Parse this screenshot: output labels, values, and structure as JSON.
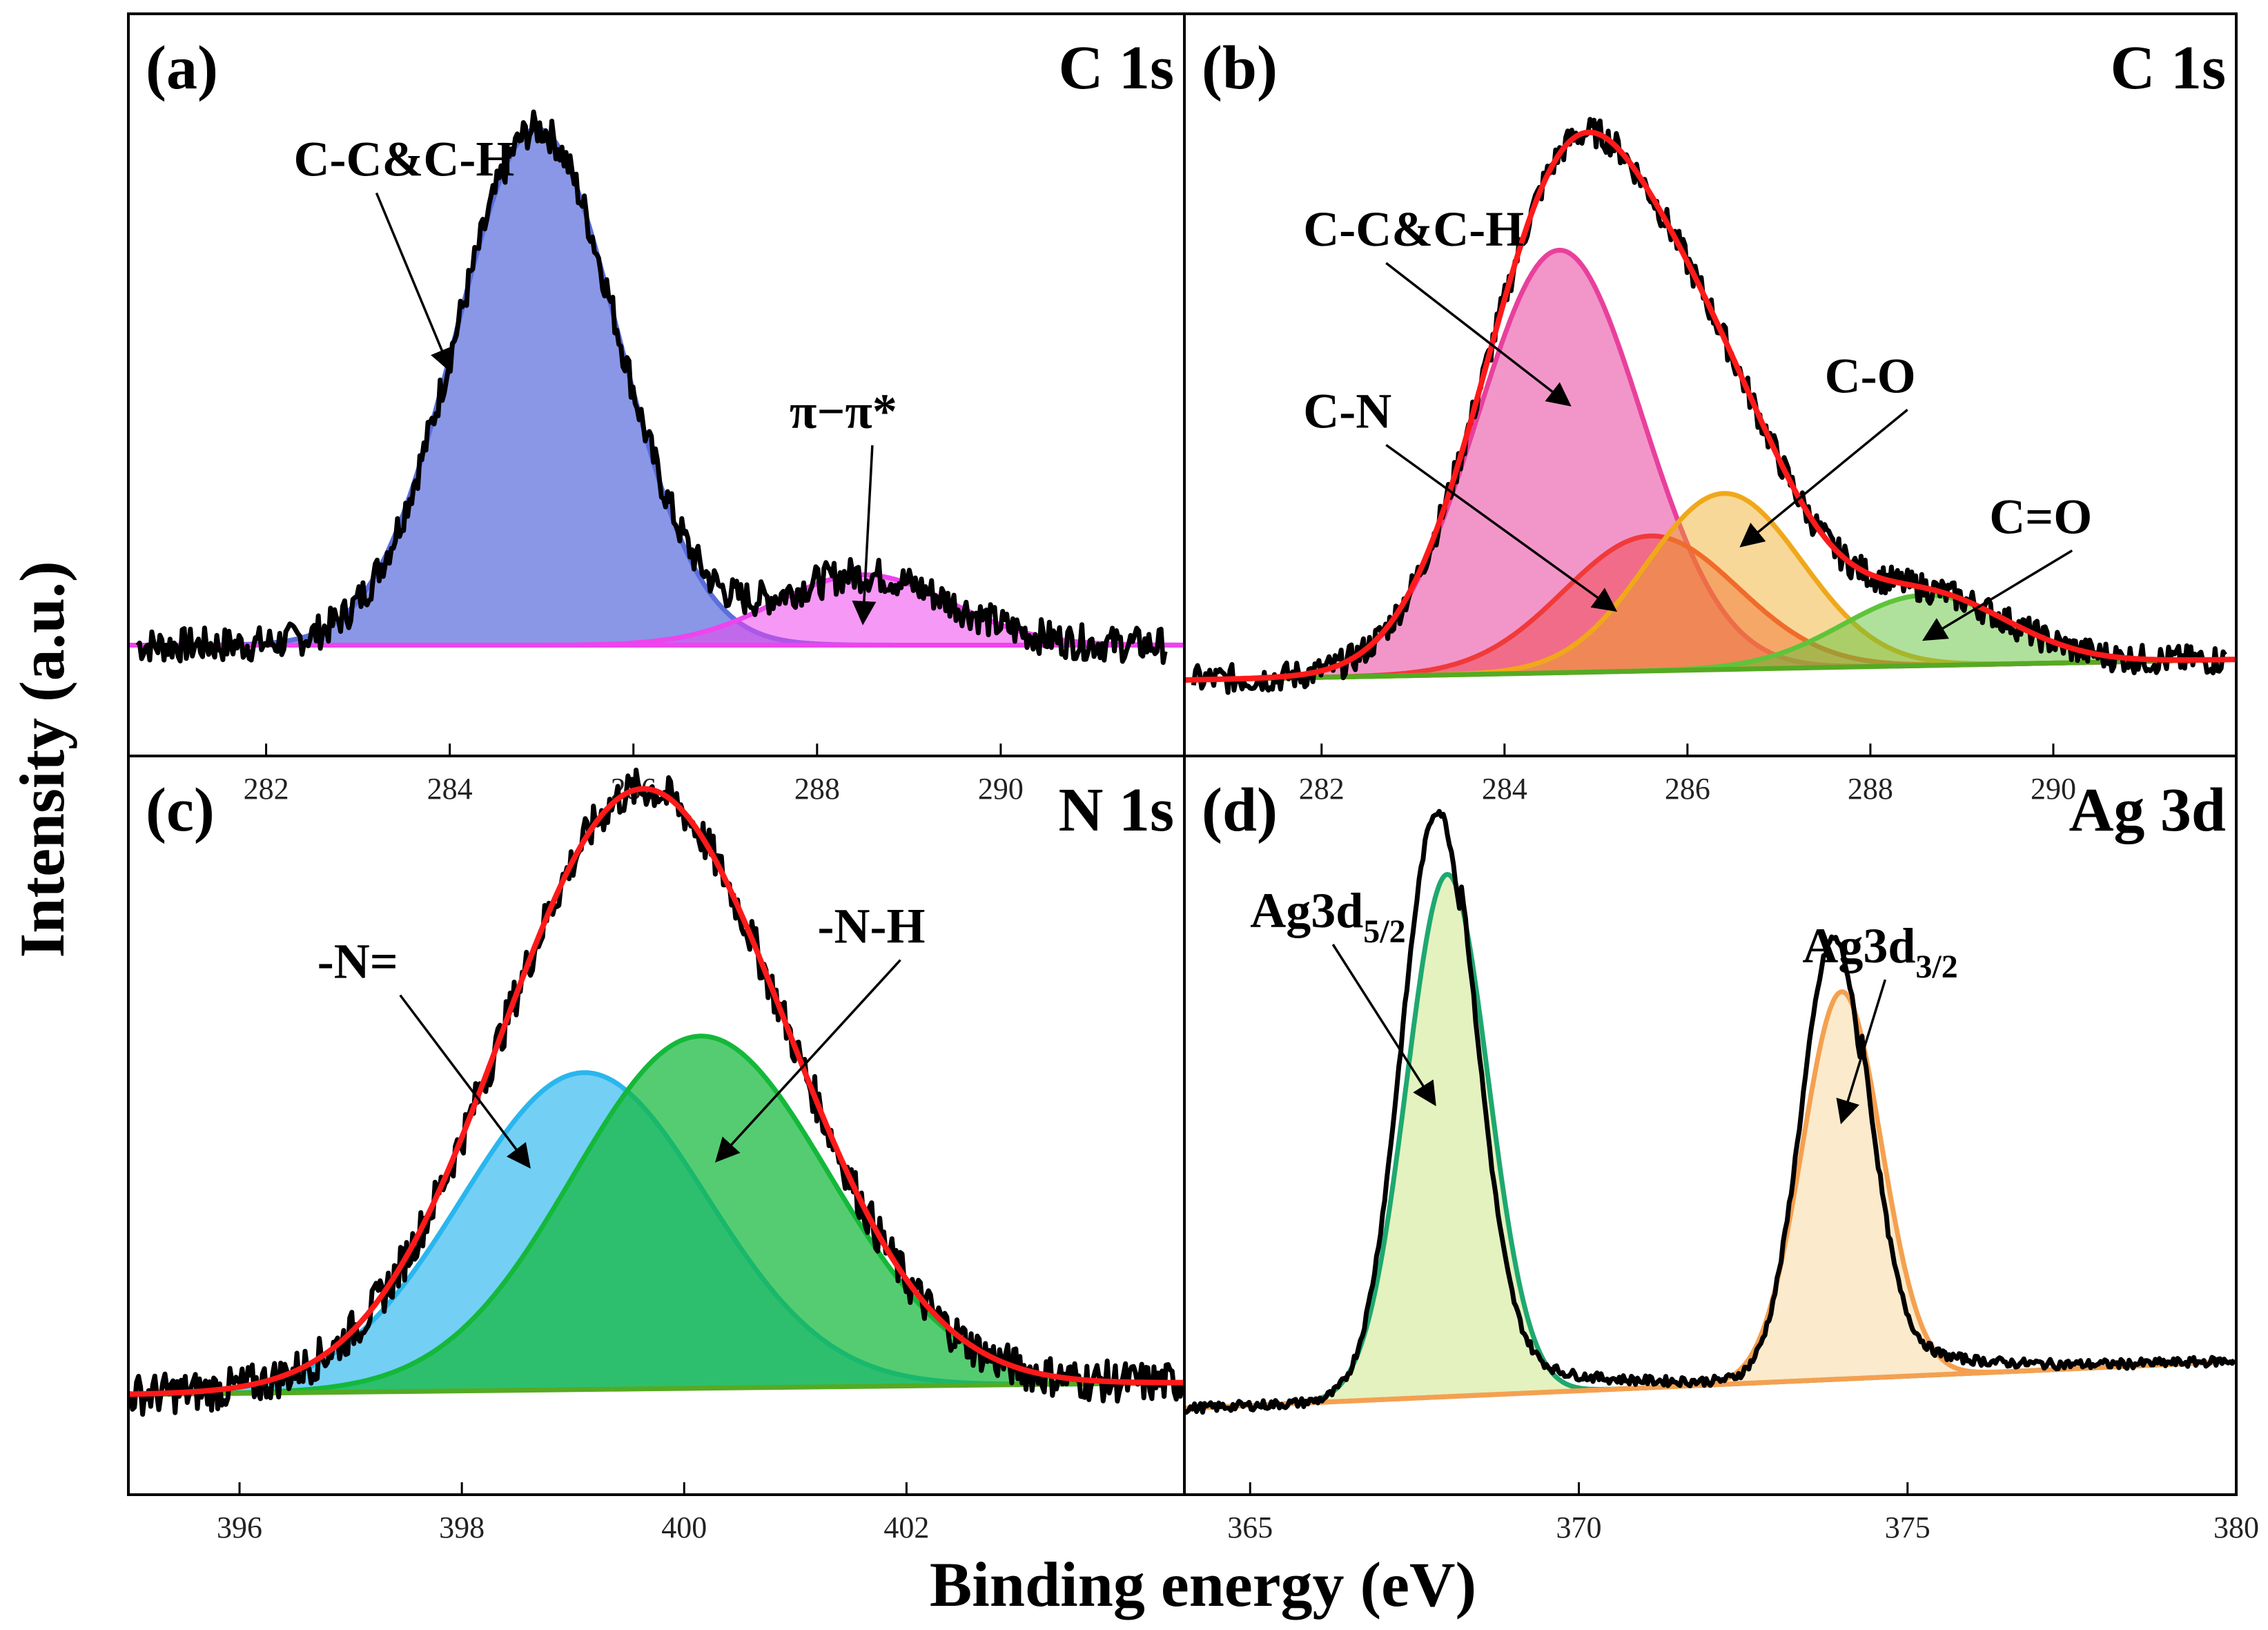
{
  "figure": {
    "xlabel": "Binding energy (eV)",
    "ylabel": "Intensity (a.u.)"
  },
  "chart_data": [
    {
      "type": "line",
      "panel": "(a)",
      "title": "C 1s",
      "xlim": [
        280.5,
        292
      ],
      "xticks": [
        282,
        284,
        286,
        288,
        290
      ],
      "background": {
        "name": "background",
        "color": "#ee44ee",
        "baseline": 0.03
      },
      "raw_data": {
        "start": 280.6,
        "end": 291.8,
        "noise": 0.03
      },
      "envelope": null,
      "components": [
        {
          "name": "C-C&C-H",
          "center": 284.95,
          "height": 0.88,
          "sigma": 0.88,
          "color": "#5b6fdc",
          "fill_opacity": 0.72
        },
        {
          "name": "π−π*",
          "center": 288.5,
          "height": 0.12,
          "sigma": 0.95,
          "color": "#ee44ee",
          "fill_opacity": 0.55
        }
      ],
      "annotations": [
        {
          "text": "C-C&C-H",
          "label_x": 282.3,
          "label_y": 0.83,
          "tip_x": 284.0,
          "tip_y": 0.5
        },
        {
          "text": "π−π*",
          "label_x": 287.7,
          "label_y": 0.4,
          "tip_x": 288.5,
          "tip_y": 0.07
        }
      ]
    },
    {
      "type": "line",
      "panel": "(b)",
      "title": "C 1s",
      "xlim": [
        280.5,
        292
      ],
      "xticks": [
        282,
        284,
        286,
        288,
        290
      ],
      "background": {
        "name": "background",
        "color": "#55aa22",
        "start": 0.0,
        "end": 0.035
      },
      "raw_data": {
        "start": 280.6,
        "end": 291.9,
        "noise": 0.025
      },
      "envelope": {
        "name": "envelope",
        "color": "#ff1a1a"
      },
      "components": [
        {
          "name": "C-C&C-H",
          "center": 284.6,
          "height": 0.72,
          "sigma": 0.9,
          "color": "#e8409c",
          "fill_opacity": 0.55
        },
        {
          "name": "C-N",
          "center": 285.6,
          "height": 0.23,
          "sigma": 0.95,
          "color": "#f03a3a",
          "fill_opacity": 0.45
        },
        {
          "name": "C-O",
          "center": 286.4,
          "height": 0.3,
          "sigma": 0.85,
          "color": "#f0a81a",
          "fill_opacity": 0.45
        },
        {
          "name": "C=O",
          "center": 288.6,
          "height": 0.12,
          "sigma": 0.9,
          "color": "#5fc43a",
          "fill_opacity": 0.5
        }
      ],
      "annotations": [
        {
          "text": "C-C&C-H",
          "label_x": 281.8,
          "label_y": 0.74,
          "tip_x": 284.7,
          "tip_y": 0.47
        },
        {
          "text": "C-N",
          "label_x": 281.8,
          "label_y": 0.43,
          "tip_x": 285.2,
          "tip_y": 0.12
        },
        {
          "text": "C-O",
          "label_x": 287.5,
          "label_y": 0.49,
          "tip_x": 286.6,
          "tip_y": 0.23
        },
        {
          "text": "C=O",
          "label_x": 289.3,
          "label_y": 0.25,
          "tip_x": 288.6,
          "tip_y": 0.07
        }
      ]
    },
    {
      "type": "line",
      "panel": "(c)",
      "title": "N 1s",
      "xlim": [
        395,
        404.5
      ],
      "xticks": [
        396,
        398,
        400,
        402
      ],
      "background": {
        "name": "background",
        "color": "#55aa22",
        "start": 0.0,
        "end": 0.02
      },
      "raw_data": {
        "start": 395.0,
        "end": 404.5,
        "noise": 0.035
      },
      "envelope": {
        "name": "envelope",
        "color": "#ff1a1a"
      },
      "components": [
        {
          "name": "-N=",
          "center": 399.1,
          "height": 0.54,
          "sigma": 1.1,
          "color": "#29b6ee",
          "fill_opacity": 0.65
        },
        {
          "name": "-N-H",
          "center": 400.15,
          "height": 0.6,
          "sigma": 1.15,
          "color": "#14b83a",
          "fill_opacity": 0.72
        }
      ],
      "annotations": [
        {
          "text": "-N=",
          "label_x": 396.7,
          "label_y": 0.71,
          "tip_x": 398.6,
          "tip_y": 0.39
        },
        {
          "text": "-N-H",
          "label_x": 401.2,
          "label_y": 0.77,
          "tip_x": 400.3,
          "tip_y": 0.4
        }
      ]
    },
    {
      "type": "line",
      "panel": "(d)",
      "title": "Ag 3d",
      "xlim": [
        364,
        380
      ],
      "xticks": [
        365,
        370,
        375,
        380
      ],
      "background": {
        "name": "background",
        "color": "#f5a050",
        "start": 0.0,
        "end": 0.08
      },
      "raw_data": {
        "start": 364.0,
        "end": 380.0,
        "noise": 0.008
      },
      "envelope": null,
      "components": [
        {
          "name": "Ag3d5/2",
          "center": 368.0,
          "height": 0.89,
          "sigma": 0.62,
          "color": "#1ea870",
          "fill_opacity": 0.55,
          "fill": "#cde88a"
        },
        {
          "name": "Ag3d3/2",
          "center": 374.0,
          "height": 0.66,
          "sigma": 0.6,
          "color": "#f5a050",
          "fill_opacity": 0.55,
          "fill": "#f8d9a0"
        }
      ],
      "raw_peaks": [
        {
          "center": 367.85,
          "height": 1.0,
          "sigma": 0.55
        },
        {
          "center": 373.88,
          "height": 0.75,
          "sigma": 0.5
        }
      ],
      "annotations": [
        {
          "text": "Ag3d",
          "sub": "5/2",
          "label_x": 365.0,
          "label_y": 0.82,
          "tip_x": 367.8,
          "tip_y": 0.52
        },
        {
          "text": "Ag3d",
          "sub": "3/2",
          "label_x": 373.4,
          "label_y": 0.76,
          "tip_x": 374.0,
          "tip_y": 0.49
        }
      ]
    }
  ]
}
